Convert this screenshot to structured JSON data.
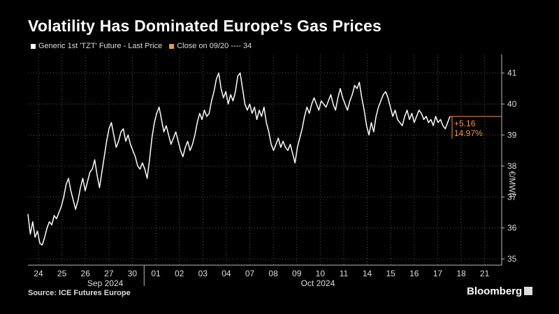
{
  "header": {
    "title": "Volatility Has Dominated Europe's Gas Prices"
  },
  "legend": {
    "series_label": "Generic 1st 'TZT' Future - Last Price",
    "series_color": "#ffffff",
    "ref_label": "Close on 09/20 ---- 34",
    "ref_color": "#f0963c"
  },
  "footer": {
    "source": "Source: ICE Futures Europe",
    "brand": "Bloomberg"
  },
  "chart_data": {
    "type": "line",
    "ylabel": "€/MWh",
    "ylim": [
      34.8,
      41.6
    ],
    "y_ticks": [
      35,
      36,
      37,
      38,
      39,
      40,
      41
    ],
    "x_tick_labels": [
      "24",
      "25",
      "26",
      "27",
      "30",
      "01",
      "02",
      "03",
      "04",
      "07",
      "08",
      "09",
      "10",
      "11",
      "14",
      "15",
      "16",
      "17",
      "18",
      "21"
    ],
    "month_labels": [
      "Sep 2024",
      "Oct 2024"
    ],
    "grid": true,
    "annotation": {
      "change": "+5.16",
      "pct": "14.97%",
      "value": 39.6
    },
    "series": [
      {
        "name": "Generic 1st 'TZT' Future - Last Price",
        "values": [
          36.45,
          35.8,
          36.2,
          35.7,
          35.9,
          35.5,
          35.45,
          35.7,
          36.0,
          36.2,
          36.1,
          36.4,
          36.3,
          36.5,
          36.7,
          37.0,
          37.4,
          37.6,
          37.2,
          36.9,
          36.6,
          36.9,
          37.3,
          37.6,
          37.2,
          37.5,
          37.8,
          37.9,
          38.2,
          37.7,
          37.3,
          37.8,
          38.3,
          38.8,
          39.2,
          39.4,
          39.0,
          38.6,
          38.8,
          39.1,
          39.2,
          38.8,
          39.0,
          38.7,
          38.5,
          38.3,
          38.0,
          37.9,
          38.1,
          37.9,
          37.6,
          38.2,
          38.9,
          39.4,
          39.7,
          39.9,
          39.5,
          39.1,
          39.3,
          39.0,
          38.7,
          38.9,
          39.1,
          38.8,
          38.5,
          38.3,
          38.6,
          38.8,
          38.5,
          38.7,
          39.0,
          39.4,
          39.7,
          39.5,
          39.8,
          39.6,
          39.7,
          40.1,
          40.4,
          40.8,
          41.0,
          40.5,
          40.2,
          40.4,
          40.0,
          40.3,
          40.1,
          40.4,
          40.9,
          41.0,
          40.5,
          40.0,
          39.8,
          40.0,
          39.7,
          39.9,
          39.5,
          39.8,
          39.6,
          39.9,
          39.4,
          39.1,
          38.7,
          38.5,
          38.7,
          38.9,
          38.6,
          38.8,
          38.6,
          38.5,
          38.7,
          38.4,
          38.1,
          38.6,
          38.9,
          39.2,
          39.6,
          39.9,
          39.7,
          40.0,
          40.2,
          40.0,
          39.8,
          40.1,
          40.0,
          39.9,
          40.1,
          40.3,
          40.0,
          39.8,
          40.2,
          40.5,
          40.2,
          40.0,
          39.8,
          40.1,
          40.3,
          40.6,
          40.5,
          40.7,
          40.2,
          39.8,
          39.3,
          39.0,
          39.4,
          39.1,
          39.6,
          39.9,
          40.1,
          40.3,
          40.4,
          40.2,
          39.9,
          39.6,
          39.8,
          39.5,
          39.4,
          39.3,
          39.6,
          39.8,
          39.5,
          39.7,
          39.4,
          39.6,
          39.8,
          39.7,
          39.5,
          39.6,
          39.4,
          39.5,
          39.3,
          39.6,
          39.4,
          39.5,
          39.3,
          39.2,
          39.4,
          39.6
        ]
      }
    ]
  }
}
